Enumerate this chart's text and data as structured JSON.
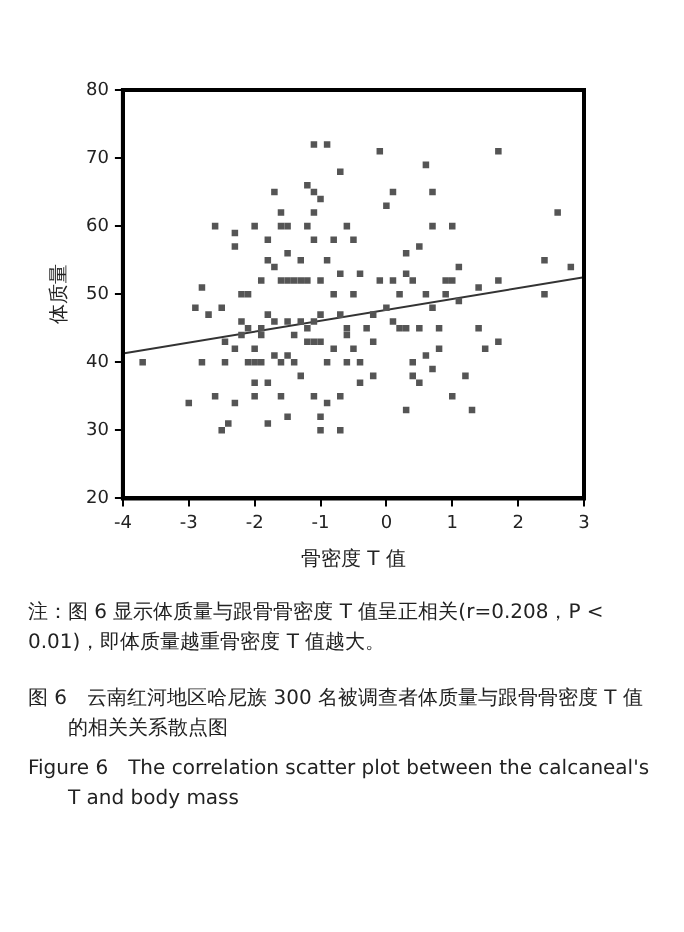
{
  "chart_data": {
    "type": "scatter",
    "xlabel": "骨密度 T 值",
    "ylabel": "体质量",
    "xlim": [
      -4,
      3
    ],
    "xticks": [
      -4,
      -3,
      -2,
      -1,
      0,
      1,
      2,
      3
    ],
    "ylim": [
      20,
      80
    ],
    "yticks": [
      20,
      30,
      40,
      50,
      60,
      70,
      80
    ],
    "grid": false,
    "legend": false,
    "series": [
      {
        "marker": "square",
        "color": "#555555",
        "x": [
          -3.7,
          -3.0,
          -2.9,
          -2.8,
          -2.8,
          -2.7,
          -2.6,
          -2.6,
          -2.5,
          -2.5,
          -2.4,
          -2.3,
          -2.3,
          -2.45,
          -2.45,
          -2.3,
          -2.3,
          -2.2,
          -2.2,
          -2.2,
          -2.1,
          -2.1,
          -2.0,
          -2.0,
          -2.0,
          -2.0,
          -1.9,
          -1.9,
          -1.9,
          -1.8,
          -1.8,
          -1.8,
          -1.8,
          -1.8,
          -1.7,
          -1.7,
          -1.7,
          -1.6,
          -1.6,
          -1.6,
          -1.6,
          -1.6,
          -1.5,
          -1.5,
          -1.5,
          -1.5,
          -1.5,
          -1.4,
          -1.4,
          -1.3,
          -1.3,
          -1.3,
          -1.3,
          -1.2,
          -1.2,
          -1.2,
          -1.2,
          -1.1,
          -1.1,
          -1.1,
          -1.1,
          -1.1,
          -1.1,
          -1.0,
          -1.0,
          -1.0,
          -1.0,
          -1.0,
          -0.9,
          -0.9,
          -0.9,
          -0.9,
          -0.8,
          -0.8,
          -0.7,
          -0.7,
          -0.7,
          -0.7,
          -0.7,
          -0.6,
          -0.6,
          -0.6,
          -0.5,
          -0.5,
          -0.5,
          -0.4,
          -0.4,
          -0.4,
          -0.2,
          -0.2,
          -0.2,
          -0.1,
          -0.1,
          0.0,
          0.0,
          0.1,
          0.1,
          0.1,
          0.2,
          0.2,
          0.3,
          0.3,
          0.3,
          0.3,
          0.4,
          0.4,
          0.4,
          0.5,
          0.5,
          0.5,
          0.6,
          0.6,
          0.6,
          0.7,
          0.7,
          0.7,
          0.7,
          0.8,
          0.8,
          0.9,
          0.9,
          1.0,
          1.0,
          1.0,
          1.1,
          1.1,
          1.2,
          1.3,
          1.4,
          1.4,
          1.5,
          1.7,
          1.7,
          1.7,
          2.4,
          2.4,
          2.6,
          2.8,
          -2.0,
          -1.9,
          -1.7,
          -1.4,
          -1.2,
          -1.0,
          -0.8,
          -0.6,
          -2.1,
          -1.5,
          -1.1,
          -0.3
        ],
        "values": [
          40,
          34,
          48,
          51,
          40,
          47,
          60,
          35,
          30,
          48,
          31,
          59,
          57,
          40,
          43,
          42,
          34,
          50,
          44,
          46,
          50,
          40,
          60,
          37,
          40,
          35,
          52,
          40,
          45,
          47,
          31,
          58,
          55,
          37,
          65,
          54,
          46,
          52,
          62,
          60,
          40,
          35,
          60,
          56,
          52,
          46,
          32,
          52,
          40,
          55,
          52,
          46,
          38,
          66,
          60,
          52,
          43,
          72,
          65,
          62,
          58,
          46,
          35,
          64,
          52,
          47,
          32,
          30,
          72,
          55,
          40,
          34,
          58,
          50,
          68,
          53,
          47,
          35,
          30,
          60,
          45,
          40,
          58,
          50,
          42,
          53,
          40,
          37,
          47,
          38,
          43,
          71,
          52,
          63,
          48,
          65,
          52,
          46,
          50,
          45,
          33,
          56,
          53,
          45,
          52,
          40,
          38,
          57,
          37,
          45,
          69,
          50,
          41,
          65,
          60,
          48,
          39,
          45,
          42,
          52,
          50,
          60,
          35,
          52,
          54,
          49,
          38,
          33,
          51,
          45,
          42,
          71,
          52,
          43,
          50,
          55,
          62,
          54,
          42,
          44,
          41,
          44,
          45,
          43,
          42,
          44,
          45,
          41,
          43,
          45
        ]
      },
      {
        "type": "line",
        "marker": "none",
        "color": "#333333",
        "x": [
          -4,
          3
        ],
        "values": [
          41.3,
          52.5
        ]
      }
    ],
    "annotations": [
      "注：图 6 显示体质量与跟骨骨密度 T 值呈正相关(r=0.208，P < 0.01)，即体质量越重骨密度 T 值越大。",
      "图 6　云南红河地区哈尼族 300 名被调查者体质量与跟骨骨密度 T 值的相关关系散点图",
      "Figure 6　The correlation scatter plot between the calcaneal's T and body mass"
    ]
  }
}
